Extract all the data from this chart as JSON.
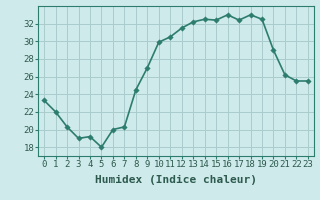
{
  "x": [
    0,
    1,
    2,
    3,
    4,
    5,
    6,
    7,
    8,
    9,
    10,
    11,
    12,
    13,
    14,
    15,
    16,
    17,
    18,
    19,
    20,
    21,
    22,
    23
  ],
  "y": [
    23.3,
    22.0,
    20.3,
    19.0,
    19.2,
    18.0,
    20.0,
    20.3,
    24.5,
    27.0,
    29.9,
    30.5,
    31.5,
    32.2,
    32.5,
    32.4,
    33.0,
    32.4,
    33.0,
    32.5,
    29.0,
    26.2,
    25.5,
    25.5
  ],
  "line_color": "#2d7d6e",
  "marker_color": "#2d7d6e",
  "bg_color": "#ceeaea",
  "grid_color": "#aacccc",
  "xlabel": "Humidex (Indice chaleur)",
  "xlim": [
    -0.5,
    23.5
  ],
  "ylim": [
    17,
    34
  ],
  "yticks": [
    18,
    20,
    22,
    24,
    26,
    28,
    30,
    32
  ],
  "xticks": [
    0,
    1,
    2,
    3,
    4,
    5,
    6,
    7,
    8,
    9,
    10,
    11,
    12,
    13,
    14,
    15,
    16,
    17,
    18,
    19,
    20,
    21,
    22,
    23
  ],
  "xtick_labels": [
    "0",
    "1",
    "2",
    "3",
    "4",
    "5",
    "6",
    "7",
    "8",
    "9",
    "10",
    "11",
    "12",
    "13",
    "14",
    "15",
    "16",
    "17",
    "18",
    "19",
    "20",
    "21",
    "22",
    "23"
  ],
  "xlabel_fontsize": 8,
  "tick_fontsize": 6.5,
  "linewidth": 1.2,
  "markersize": 2.8
}
